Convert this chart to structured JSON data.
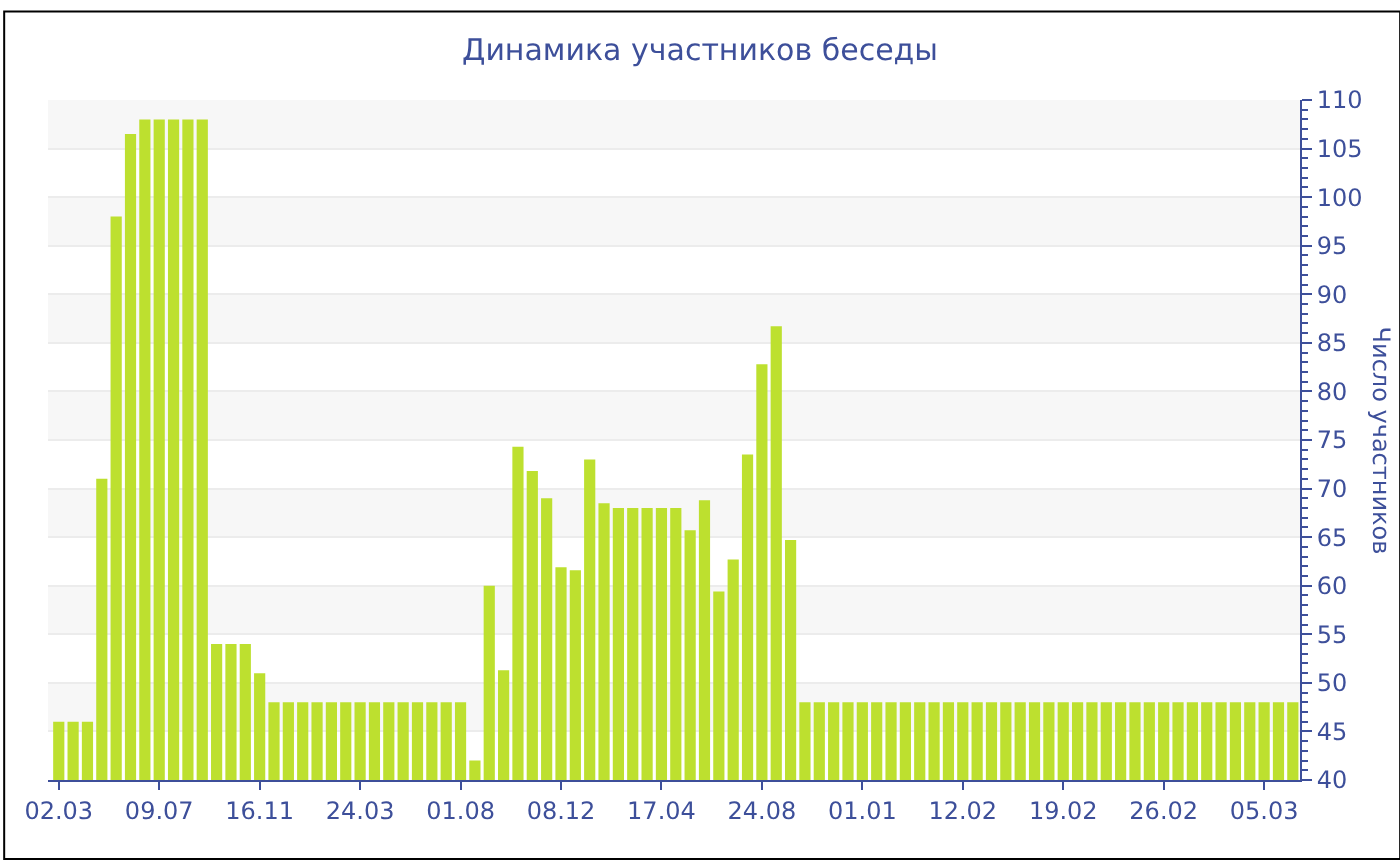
{
  "chart_data": {
    "type": "bar",
    "title": "Динамика участников беседы",
    "ylabel": "Число участников",
    "categories": [
      "02.03",
      null,
      null,
      null,
      null,
      null,
      null,
      "09.07",
      null,
      null,
      null,
      null,
      null,
      null,
      "16.11",
      null,
      null,
      null,
      null,
      null,
      null,
      "24.03",
      null,
      null,
      null,
      null,
      null,
      null,
      "01.08",
      null,
      null,
      null,
      null,
      null,
      null,
      "08.12",
      null,
      null,
      null,
      null,
      null,
      null,
      "17.04",
      null,
      null,
      null,
      null,
      null,
      null,
      "24.08",
      null,
      null,
      null,
      null,
      null,
      null,
      "01.01",
      null,
      null,
      null,
      null,
      null,
      null,
      "12.02",
      null,
      null,
      null,
      null,
      null,
      null,
      "19.02",
      null,
      null,
      null,
      null,
      null,
      null,
      "26.02",
      null,
      null,
      null,
      null,
      null,
      null,
      "05.03",
      null,
      null
    ],
    "values": [
      46,
      46,
      46,
      71,
      98,
      106.5,
      108,
      108,
      108,
      108,
      108,
      54,
      54,
      54,
      51,
      48,
      48,
      48,
      48,
      48,
      48,
      48,
      48,
      48,
      48,
      48,
      48,
      48,
      48,
      42,
      60,
      51.3,
      74.3,
      71.8,
      69,
      61.9,
      61.6,
      73,
      68.5,
      68,
      68,
      68,
      68,
      68,
      65.7,
      68.8,
      59.4,
      62.7,
      73.5,
      82.8,
      86.7,
      64.7,
      48,
      48,
      48,
      48,
      48,
      48,
      48,
      48,
      48,
      48,
      48,
      48,
      48,
      48,
      48,
      48,
      48,
      48,
      48,
      48,
      48,
      48,
      48,
      48,
      48,
      48,
      48,
      48,
      48,
      48,
      48,
      48,
      48,
      48,
      48
    ],
    "color": "#bde02f",
    "ylim": [
      40,
      110
    ],
    "yticks": [
      40,
      45,
      50,
      55,
      60,
      65,
      70,
      75,
      80,
      85,
      90,
      95,
      100,
      105,
      110
    ],
    "grid": "y"
  }
}
